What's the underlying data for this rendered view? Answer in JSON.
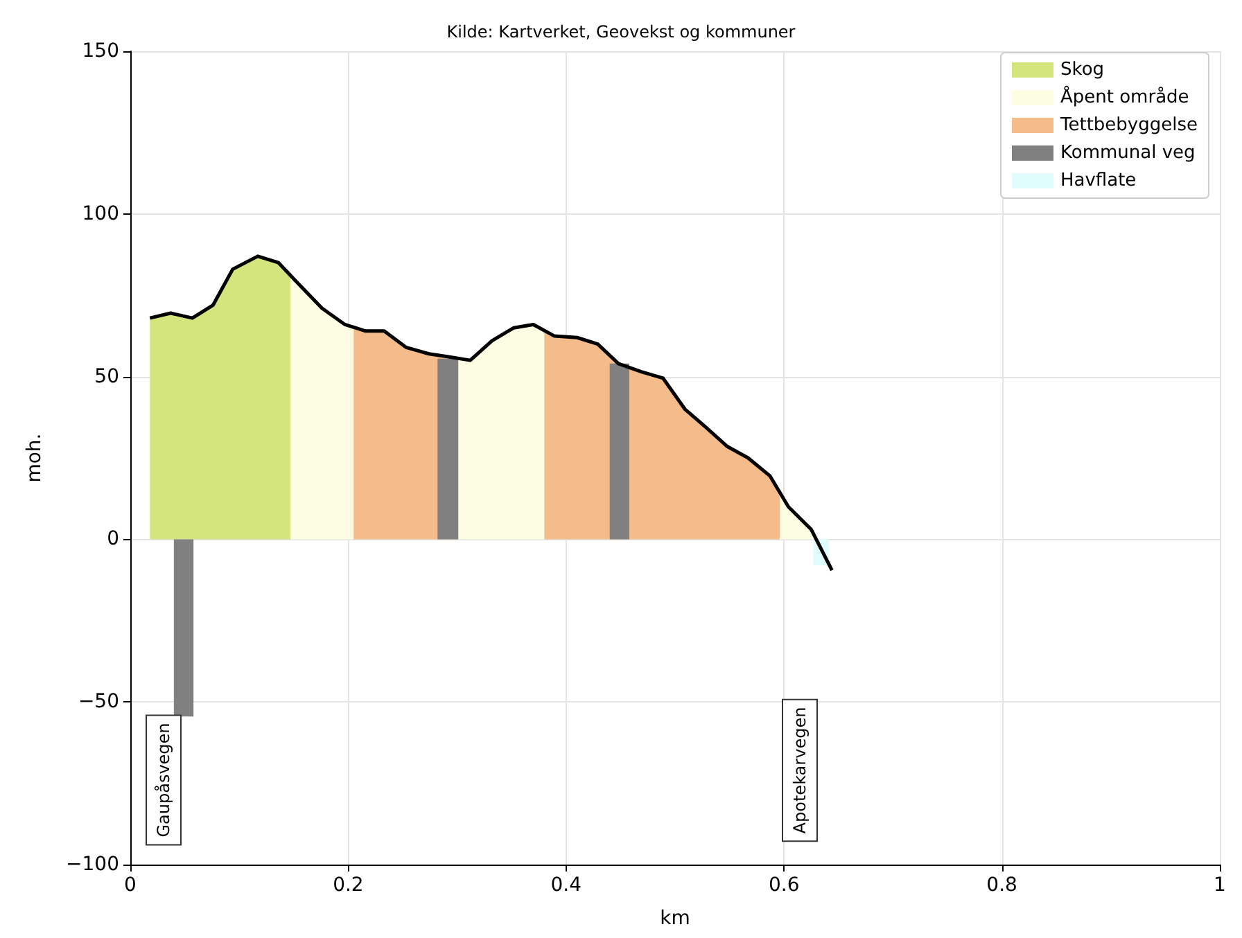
{
  "chart_data": {
    "type": "area",
    "title": "Kilde: Kartverket, Geovekst og kommuner",
    "xlabel": "km",
    "ylabel": "moh.",
    "xlim": [
      0,
      1
    ],
    "xticks": [
      0,
      0.2,
      0.4,
      0.6,
      0.8,
      1.0
    ],
    "ylim": [
      -100,
      150
    ],
    "yticks": [
      -100,
      -50,
      0,
      50,
      100,
      150
    ],
    "grid": true,
    "legend": "top right",
    "series": [
      {
        "name": "Skog",
        "color": "#d4e57d",
        "x": [
          0.018,
          0.037,
          0.057,
          0.076,
          0.094,
          0.117,
          0.136,
          0.147
        ],
        "values": [
          68,
          69.5,
          68,
          72,
          83,
          87,
          85,
          82
        ]
      },
      {
        "name": "Åpent område",
        "color": "#fdfde3",
        "x": [
          0.147,
          0.153,
          0.176,
          0.197,
          0.205,
          0.25,
          0.301,
          0.312,
          0.332,
          0.352,
          0.37,
          0.38,
          0.5,
          0.596,
          0.604,
          0.625,
          0.627
        ],
        "values": [
          82,
          79,
          71,
          66,
          65,
          null,
          55.5,
          55,
          61,
          65,
          66,
          64,
          null,
          15,
          10,
          3,
          2
        ]
      },
      {
        "name": "Tettbebyggelse",
        "color": "#f5bc8b",
        "x": [
          0.205,
          0.216,
          0.233,
          0.253,
          0.274,
          0.282,
          0.301,
          0.34,
          0.38,
          0.389,
          0.41,
          0.429,
          0.448,
          0.469,
          0.489,
          0.509,
          0.528,
          0.548,
          0.567,
          0.587,
          0.596
        ],
        "values": [
          65,
          64,
          64,
          59,
          57,
          56.5,
          55.5,
          null,
          64,
          62.5,
          62,
          60,
          54,
          51.5,
          49.5,
          40,
          34.5,
          28.5,
          25,
          19.5,
          15
        ]
      },
      {
        "name": "Kommunal veg",
        "color": "#808080",
        "x": [
          0.04,
          0.058,
          0.17,
          0.282,
          0.301,
          0.37,
          0.44,
          0.458
        ],
        "values": [
          -54.5,
          -54.5,
          null,
          55.5,
          55.5,
          null,
          54,
          54
        ]
      },
      {
        "name": "Havflate",
        "color": "#e0fcfd",
        "x": [
          0.627,
          0.641
        ],
        "values": [
          -8,
          -8
        ]
      },
      {
        "type": "line",
        "color": "#000000",
        "x": [
          0.018,
          0.037,
          0.057,
          0.076,
          0.094,
          0.117,
          0.136,
          0.153,
          0.176,
          0.197,
          0.216,
          0.233,
          0.253,
          0.274,
          0.294,
          0.312,
          0.332,
          0.352,
          0.37,
          0.389,
          0.41,
          0.429,
          0.448,
          0.469,
          0.489,
          0.509,
          0.528,
          0.548,
          0.567,
          0.587,
          0.604,
          0.625,
          0.644
        ],
        "values": [
          68,
          69.5,
          68,
          72,
          83,
          87,
          85,
          79,
          71,
          66,
          64,
          64,
          59,
          57,
          56,
          55,
          61,
          65,
          66,
          62.5,
          62,
          60,
          54,
          51.5,
          49.5,
          40,
          34.5,
          28.5,
          25,
          19.5,
          10,
          3,
          -9.5
        ]
      }
    ],
    "annotations": [
      "Gaupåsvegen",
      "Apotekarvegen"
    ]
  }
}
